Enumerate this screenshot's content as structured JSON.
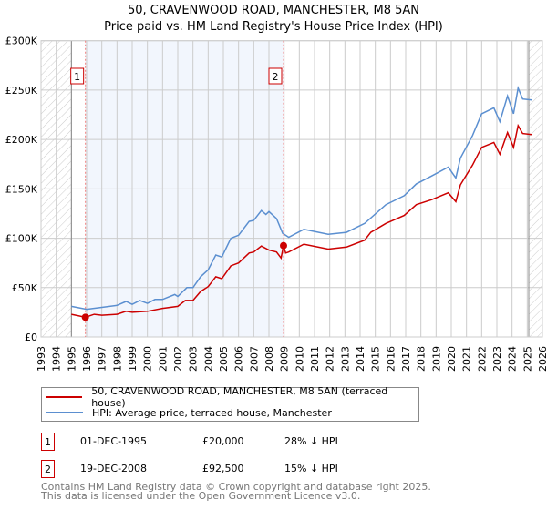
{
  "title": {
    "line1": "50, CRAVENWOOD ROAD, MANCHESTER, M8 5AN",
    "line2": "Price paid vs. HM Land Registry's House Price Index (HPI)"
  },
  "chart_data": {
    "type": "line",
    "xlim": [
      1993,
      2026
    ],
    "ylim": [
      0,
      300000
    ],
    "yticks": [
      {
        "v": 0,
        "label": "£0"
      },
      {
        "v": 50000,
        "label": "£50K"
      },
      {
        "v": 100000,
        "label": "£100K"
      },
      {
        "v": 150000,
        "label": "£150K"
      },
      {
        "v": 200000,
        "label": "£200K"
      },
      {
        "v": 250000,
        "label": "£250K"
      },
      {
        "v": 300000,
        "label": "£300K"
      }
    ],
    "xticks": [
      "1993",
      "1994",
      "1995",
      "1996",
      "1997",
      "1998",
      "1999",
      "2000",
      "2001",
      "2002",
      "2003",
      "2004",
      "2005",
      "2006",
      "2007",
      "2008",
      "2009",
      "2010",
      "2011",
      "2012",
      "2013",
      "2014",
      "2015",
      "2016",
      "2017",
      "2018",
      "2019",
      "2020",
      "2021",
      "2022",
      "2023",
      "2024",
      "2025",
      "2026"
    ],
    "data_range": [
      1995,
      2025.1
    ],
    "series": [
      {
        "name": "50, CRAVENWOOD ROAD, MANCHESTER, M8 5AN (terraced house)",
        "color": "#cc0000",
        "x": [
          1995,
          1995.92,
          1996.5,
          1997,
          1998,
          1998.6,
          1999,
          2000,
          2001,
          2002,
          2002.5,
          2003,
          2003.5,
          2004,
          2004.5,
          2004.9,
          2005.5,
          2006,
          2006.7,
          2007,
          2007.5,
          2008,
          2008.5,
          2008.8,
          2008.96,
          2009.1,
          2009.3,
          2010.3,
          2011.9,
          2013.1,
          2014.3,
          2014.7,
          2015.7,
          2016.9,
          2017.7,
          2018.7,
          2019.8,
          2020.3,
          2020.6,
          2021.4,
          2022,
          2022.8,
          2023.2,
          2023.7,
          2024.1,
          2024.4,
          2024.7,
          2025.3
        ],
        "y": [
          23000,
          20000,
          23000,
          22000,
          23000,
          26000,
          25000,
          26000,
          29000,
          31000,
          37000,
          37000,
          46000,
          51000,
          61000,
          59000,
          72000,
          75000,
          85000,
          86000,
          92000,
          88000,
          86000,
          80000,
          92500,
          85000,
          86000,
          94000,
          89000,
          91000,
          98000,
          106000,
          115000,
          123000,
          134000,
          139000,
          146000,
          137000,
          154000,
          174000,
          192000,
          197000,
          185000,
          207000,
          192000,
          214000,
          206000,
          205000
        ]
      },
      {
        "name": "HPI: Average price, terraced house, Manchester",
        "color": "#5b8fd0",
        "x": [
          1995,
          1996,
          1997,
          1998,
          1998.6,
          1999,
          1999.5,
          2000,
          2000.5,
          2001,
          2001.8,
          2002,
          2002.6,
          2003,
          2003.5,
          2004,
          2004.5,
          2004.9,
          2005.5,
          2006,
          2006.7,
          2007,
          2007.5,
          2007.8,
          2008,
          2008.5,
          2008.9,
          2009.3,
          2010.3,
          2011.9,
          2013.1,
          2014.3,
          2015.7,
          2016.9,
          2017.7,
          2018.7,
          2019.8,
          2020.3,
          2020.6,
          2021.4,
          2022,
          2022.8,
          2023.2,
          2023.7,
          2024.1,
          2024.4,
          2024.7,
          2025.3
        ],
        "y": [
          31000,
          28000,
          30000,
          32000,
          36000,
          33000,
          37000,
          34000,
          38000,
          38000,
          43000,
          41000,
          50000,
          50000,
          61000,
          68000,
          83000,
          81000,
          100000,
          103000,
          117000,
          118000,
          128000,
          124000,
          127000,
          120000,
          105000,
          101000,
          109000,
          104000,
          106000,
          115000,
          134000,
          143000,
          155000,
          163000,
          172000,
          161000,
          181000,
          204000,
          226000,
          232000,
          218000,
          244000,
          226000,
          252000,
          241000,
          240000
        ]
      }
    ],
    "sales": [
      {
        "label": "1",
        "x": 1995.92,
        "y": 20000,
        "date": "01-DEC-1995",
        "price": "£20,000",
        "hpi": "28% ↓ HPI"
      },
      {
        "label": "2",
        "x": 2008.96,
        "y": 92500,
        "date": "19-DEC-2008",
        "price": "£92,500",
        "hpi": "15% ↓ HPI"
      }
    ]
  },
  "footer": {
    "line1": "Contains HM Land Registry data © Crown copyright and database right 2025.",
    "line2": "This data is licensed under the Open Government Licence v3.0."
  }
}
